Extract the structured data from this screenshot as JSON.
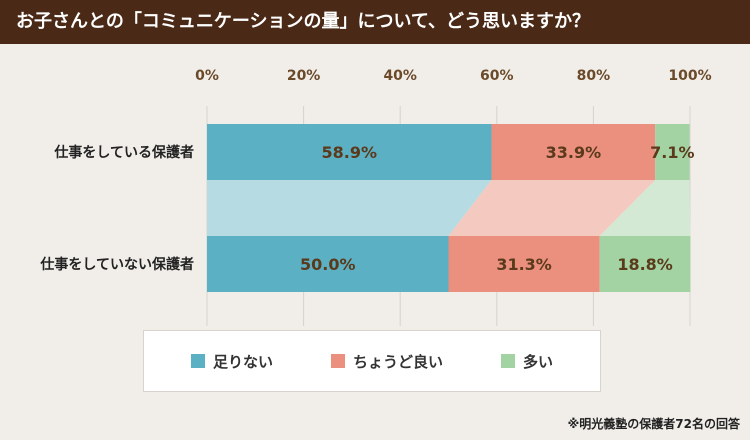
{
  "header": {
    "title": "お子さんとの「コミュニケーションの量」について、どう思いますか？"
  },
  "colors": {
    "header_bg": "#4a2a17",
    "too_few": "#5bb0c4",
    "just_right": "#eb907e",
    "too_many": "#a3d3a3"
  },
  "legend": {
    "items": [
      {
        "label": "足りない",
        "color": "#5bb0c4"
      },
      {
        "label": "ちょうど良い",
        "color": "#eb907e"
      },
      {
        "label": "多い",
        "color": "#a3d3a3"
      }
    ]
  },
  "footnote": "※明光義塾の保護者72名の回答",
  "chart_data": {
    "type": "bar",
    "orientation": "horizontal-stacked-100",
    "x_ticks": [
      "0%",
      "20%",
      "40%",
      "60%",
      "80%",
      "100%"
    ],
    "xlim": [
      0,
      100
    ],
    "categories": [
      "仕事をしている保護者",
      "仕事をしていない保護者"
    ],
    "series": [
      {
        "name": "足りない",
        "values": [
          58.9,
          50.0
        ],
        "labels": [
          "58.9%",
          "50.0%"
        ]
      },
      {
        "name": "ちょうど良い",
        "values": [
          33.9,
          31.3
        ],
        "labels": [
          "33.9%",
          "31.3%"
        ]
      },
      {
        "name": "多い",
        "values": [
          7.1,
          18.8
        ],
        "labels": [
          "7.1%",
          "18.8%"
        ]
      }
    ],
    "grid": true,
    "legend_position": "bottom"
  }
}
